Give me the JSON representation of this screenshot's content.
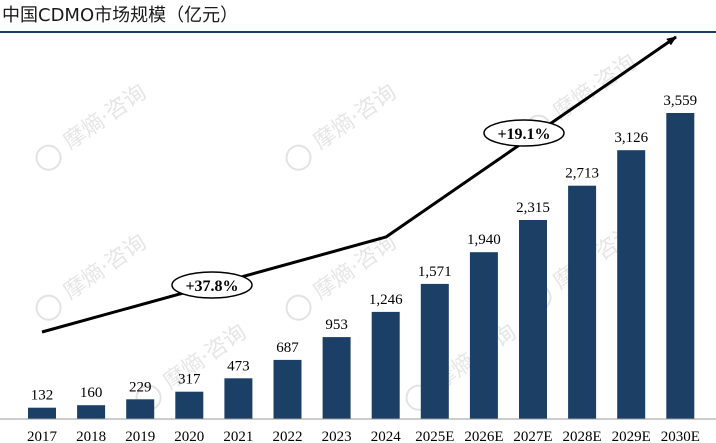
{
  "page_title": "中国CDMO市场规模（亿元）",
  "watermark": "摩熵·咨询",
  "chart_data": {
    "type": "bar",
    "title": "中国CDMO市场规模（亿元）",
    "categories": [
      "2017",
      "2018",
      "2019",
      "2020",
      "2021",
      "2022",
      "2023",
      "2024",
      "2025E",
      "2026E",
      "2027E",
      "2028E",
      "2029E",
      "2030E"
    ],
    "values": [
      132,
      160,
      229,
      317,
      473,
      687,
      953,
      1246,
      1571,
      1940,
      2315,
      2713,
      3126,
      3559
    ],
    "value_labels": [
      "132",
      "160",
      "229",
      "317",
      "473",
      "687",
      "953",
      "1,246",
      "1,571",
      "1,940",
      "2,315",
      "2,713",
      "3,126",
      "3,559"
    ],
    "xlabel": "",
    "ylabel": "",
    "ylim": [
      0,
      3700
    ],
    "grid": false,
    "legend": "none",
    "bar_color": "#1c3f66",
    "annotations": [
      {
        "label": "+37.8%",
        "from": "2017",
        "to": "2024",
        "period": "historical"
      },
      {
        "label": "+19.1%",
        "from": "2024",
        "to": "2030E",
        "period": "forecast"
      }
    ]
  }
}
